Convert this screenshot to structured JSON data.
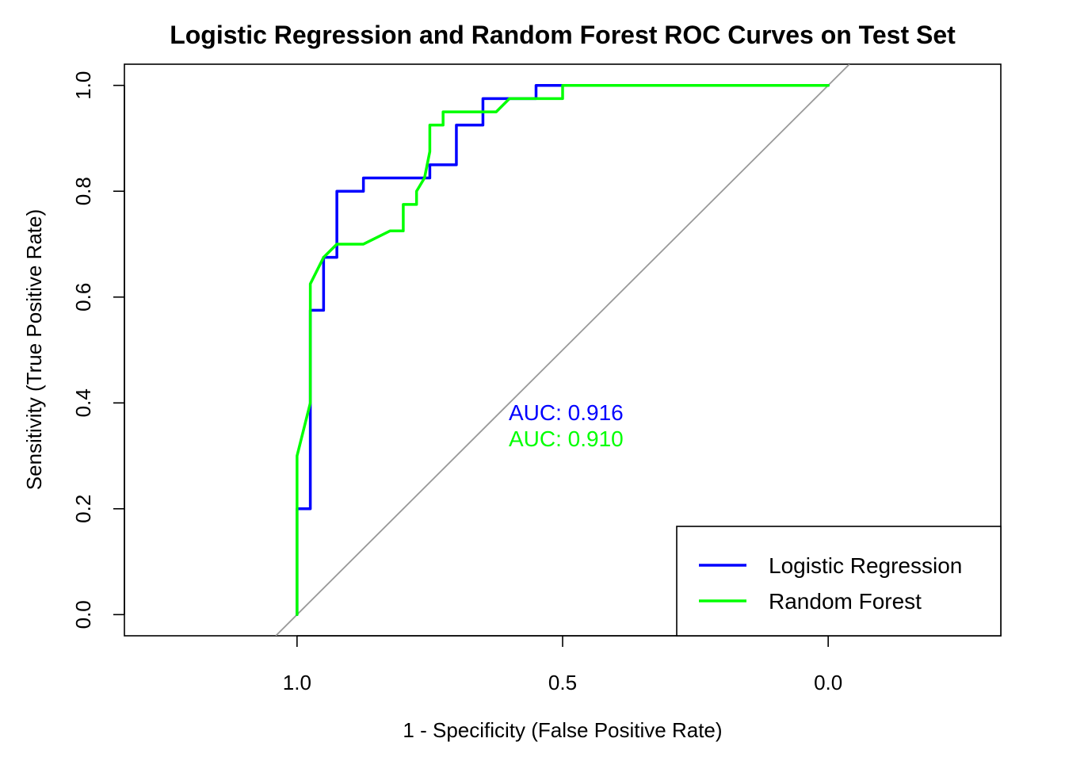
{
  "chart_data": {
    "type": "line",
    "title": "Logistic Regression and Random Forest ROC Curves on Test Set",
    "xlabel": "1 - Specificity (False Positive Rate)",
    "ylabel": "Sensitivity (True Positive Rate)",
    "xlim": [
      1.325,
      -0.325
    ],
    "ylim": [
      -0.04,
      1.04
    ],
    "x_reversed": true,
    "x_ticks": [
      1.0,
      0.5,
      0.0
    ],
    "x_tick_labels": [
      "1.0",
      "0.5",
      "0.0"
    ],
    "y_ticks": [
      0.0,
      0.2,
      0.4,
      0.6,
      0.8,
      1.0
    ],
    "y_tick_labels": [
      "0.0",
      "0.2",
      "0.4",
      "0.6",
      "0.8",
      "1.0"
    ],
    "grid": false,
    "legend_position": "bottom-right",
    "reference_line": {
      "color": "#999999",
      "points": [
        [
          1.04,
          -0.04
        ],
        [
          -0.04,
          1.04
        ]
      ]
    },
    "series": [
      {
        "name": "Logistic Regression",
        "color": "#0000ff",
        "auc_label": "AUC: 0.916",
        "points": [
          [
            1.0,
            0.0
          ],
          [
            1.0,
            0.2
          ],
          [
            0.975,
            0.2
          ],
          [
            0.975,
            0.4
          ],
          [
            0.975,
            0.575
          ],
          [
            0.95,
            0.575
          ],
          [
            0.95,
            0.675
          ],
          [
            0.925,
            0.675
          ],
          [
            0.925,
            0.8
          ],
          [
            0.875,
            0.8
          ],
          [
            0.875,
            0.825
          ],
          [
            0.75,
            0.825
          ],
          [
            0.75,
            0.85
          ],
          [
            0.7,
            0.85
          ],
          [
            0.7,
            0.925
          ],
          [
            0.65,
            0.925
          ],
          [
            0.65,
            0.975
          ],
          [
            0.6,
            0.975
          ],
          [
            0.55,
            0.975
          ],
          [
            0.55,
            1.0
          ],
          [
            0.0,
            1.0
          ]
        ]
      },
      {
        "name": "Random Forest",
        "color": "#00ff00",
        "auc_label": "AUC: 0.910",
        "points": [
          [
            1.0,
            0.0
          ],
          [
            1.0,
            0.3
          ],
          [
            0.975,
            0.4
          ],
          [
            0.975,
            0.625
          ],
          [
            0.95,
            0.675
          ],
          [
            0.925,
            0.7
          ],
          [
            0.875,
            0.7
          ],
          [
            0.825,
            0.725
          ],
          [
            0.8,
            0.725
          ],
          [
            0.8,
            0.775
          ],
          [
            0.775,
            0.775
          ],
          [
            0.775,
            0.8
          ],
          [
            0.76,
            0.825
          ],
          [
            0.75,
            0.875
          ],
          [
            0.75,
            0.925
          ],
          [
            0.725,
            0.925
          ],
          [
            0.725,
            0.95
          ],
          [
            0.625,
            0.95
          ],
          [
            0.6,
            0.975
          ],
          [
            0.5,
            0.975
          ],
          [
            0.5,
            1.0
          ],
          [
            0.0,
            1.0
          ]
        ]
      }
    ]
  }
}
